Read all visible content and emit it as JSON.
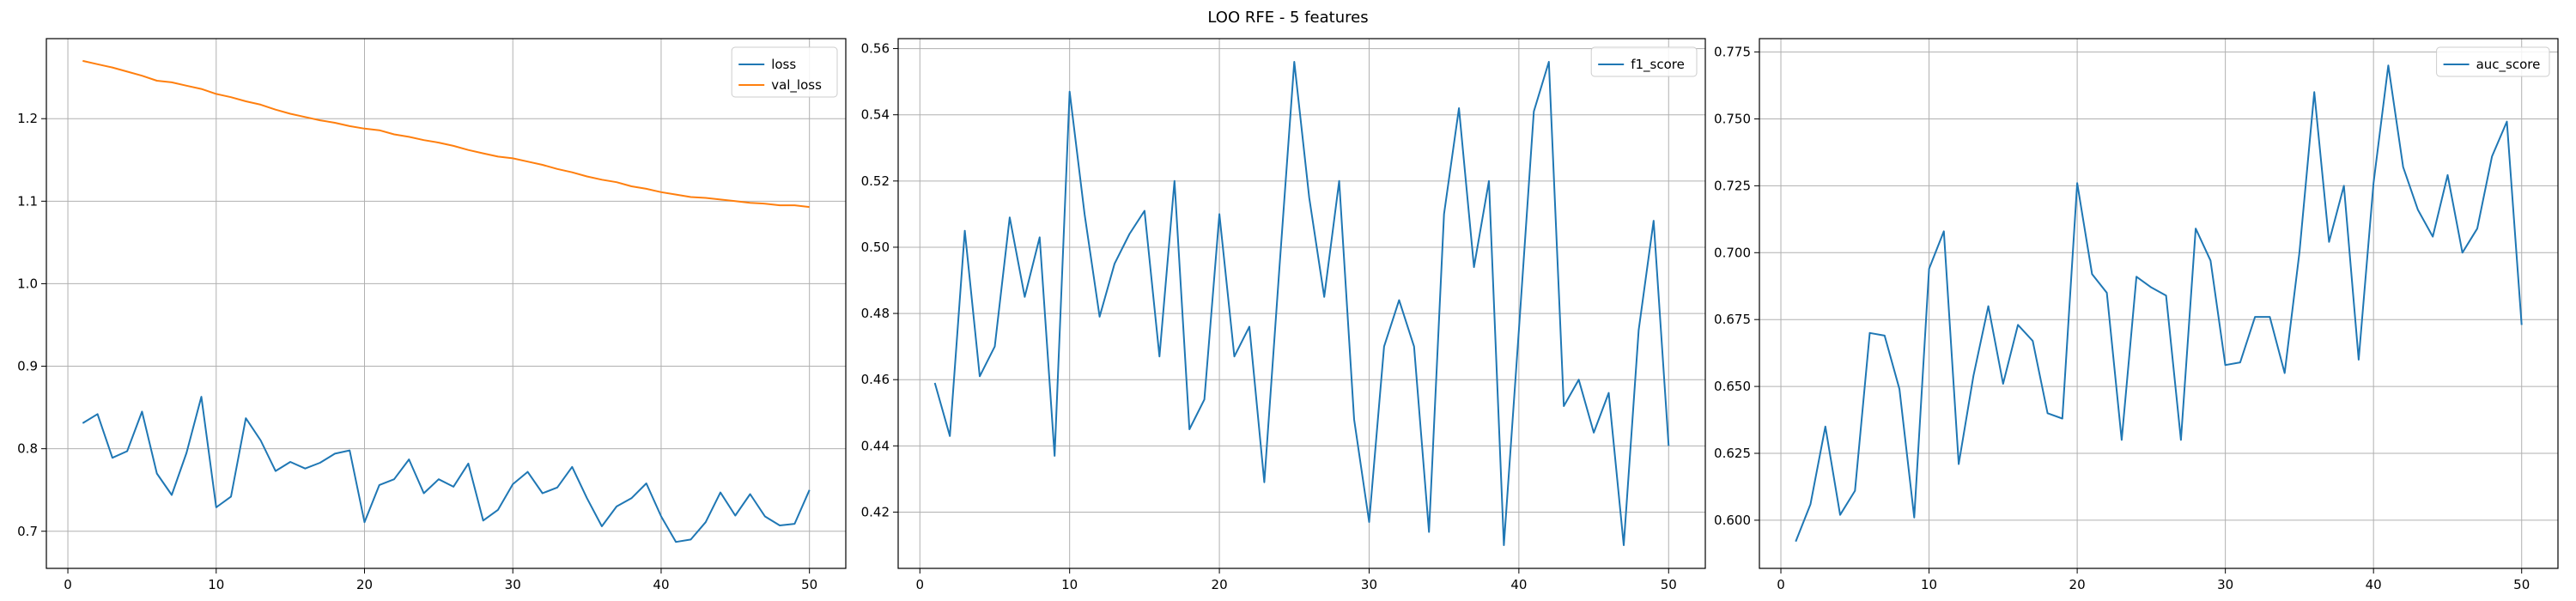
{
  "figure": {
    "title": "LOO RFE - 5 features"
  },
  "colors": {
    "blue": "#1f77b4",
    "orange": "#ff7f0e",
    "grid": "#b0b0b0"
  },
  "chart_data": [
    {
      "type": "line",
      "x": [
        1,
        2,
        3,
        4,
        5,
        6,
        7,
        8,
        9,
        10,
        11,
        12,
        13,
        14,
        15,
        16,
        17,
        18,
        19,
        20,
        21,
        22,
        23,
        24,
        25,
        26,
        27,
        28,
        29,
        30,
        31,
        32,
        33,
        34,
        35,
        36,
        37,
        38,
        39,
        40,
        41,
        42,
        43,
        44,
        45,
        46,
        47,
        48,
        49,
        50
      ],
      "series": [
        {
          "name": "loss",
          "color": "#1f77b4",
          "values": [
            0.831,
            0.842,
            0.789,
            0.797,
            0.845,
            0.77,
            0.744,
            0.795,
            0.863,
            0.729,
            0.742,
            0.837,
            0.81,
            0.773,
            0.784,
            0.776,
            0.783,
            0.794,
            0.798,
            0.711,
            0.756,
            0.763,
            0.787,
            0.746,
            0.763,
            0.754,
            0.782,
            0.713,
            0.726,
            0.757,
            0.772,
            0.746,
            0.753,
            0.778,
            0.74,
            0.706,
            0.73,
            0.74,
            0.758,
            0.718,
            0.687,
            0.69,
            0.711,
            0.747,
            0.719,
            0.745,
            0.718,
            0.707,
            0.709,
            0.75
          ]
        },
        {
          "name": "val_loss",
          "color": "#ff7f0e",
          "values": [
            1.27,
            1.266,
            1.262,
            1.257,
            1.252,
            1.246,
            1.244,
            1.24,
            1.236,
            1.23,
            1.226,
            1.221,
            1.217,
            1.211,
            1.206,
            1.202,
            1.198,
            1.195,
            1.191,
            1.188,
            1.186,
            1.181,
            1.178,
            1.174,
            1.171,
            1.167,
            1.162,
            1.158,
            1.154,
            1.152,
            1.148,
            1.144,
            1.139,
            1.135,
            1.13,
            1.126,
            1.123,
            1.118,
            1.115,
            1.111,
            1.108,
            1.105,
            1.104,
            1.102,
            1.1,
            1.098,
            1.097,
            1.095,
            1.095,
            1.093
          ]
        }
      ],
      "ylim": [
        0.655,
        1.297
      ],
      "xlim": [
        -1.45,
        52.45
      ],
      "yticks": [
        0.7,
        0.8,
        0.9,
        1.0,
        1.1,
        1.2
      ],
      "xticks": [
        0,
        10,
        20,
        30,
        40,
        50
      ],
      "grid": true,
      "legend": "top-right"
    },
    {
      "type": "line",
      "x": [
        1,
        2,
        3,
        4,
        5,
        6,
        7,
        8,
        9,
        10,
        11,
        12,
        13,
        14,
        15,
        16,
        17,
        18,
        19,
        20,
        21,
        22,
        23,
        24,
        25,
        26,
        27,
        28,
        29,
        30,
        31,
        32,
        33,
        34,
        35,
        36,
        37,
        38,
        39,
        40,
        41,
        42,
        43,
        44,
        45,
        46,
        47,
        48,
        49,
        50
      ],
      "series": [
        {
          "name": "f1_score",
          "color": "#1f77b4",
          "values": [
            0.459,
            0.443,
            0.505,
            0.461,
            0.47,
            0.509,
            0.485,
            0.503,
            0.437,
            0.547,
            0.51,
            0.479,
            0.495,
            0.504,
            0.511,
            0.467,
            0.52,
            0.445,
            0.454,
            0.51,
            0.467,
            0.476,
            0.429,
            0.493,
            0.556,
            0.515,
            0.485,
            0.52,
            0.448,
            0.417,
            0.47,
            0.484,
            0.47,
            0.414,
            0.51,
            0.542,
            0.494,
            0.52,
            0.41,
            0.475,
            0.541,
            0.556,
            0.452,
            0.46,
            0.444,
            0.456,
            0.41,
            0.475,
            0.508,
            0.44
          ]
        }
      ],
      "ylim": [
        0.403,
        0.563
      ],
      "xlim": [
        -1.45,
        52.45
      ],
      "yticks": [
        0.42,
        0.44,
        0.46,
        0.48,
        0.5,
        0.52,
        0.54,
        0.56
      ],
      "xticks": [
        0,
        10,
        20,
        30,
        40,
        50
      ],
      "grid": true,
      "legend": "top-right"
    },
    {
      "type": "line",
      "x": [
        1,
        2,
        3,
        4,
        5,
        6,
        7,
        8,
        9,
        10,
        11,
        12,
        13,
        14,
        15,
        16,
        17,
        18,
        19,
        20,
        21,
        22,
        23,
        24,
        25,
        26,
        27,
        28,
        29,
        30,
        31,
        32,
        33,
        34,
        35,
        36,
        37,
        38,
        39,
        40,
        41,
        42,
        43,
        44,
        45,
        46,
        47,
        48,
        49,
        50
      ],
      "series": [
        {
          "name": "auc_score",
          "color": "#1f77b4",
          "values": [
            0.592,
            0.606,
            0.635,
            0.602,
            0.611,
            0.67,
            0.669,
            0.649,
            0.601,
            0.694,
            0.708,
            0.621,
            0.654,
            0.68,
            0.651,
            0.673,
            0.667,
            0.64,
            0.638,
            0.726,
            0.692,
            0.685,
            0.63,
            0.691,
            0.687,
            0.684,
            0.63,
            0.709,
            0.697,
            0.658,
            0.659,
            0.676,
            0.676,
            0.655,
            0.7,
            0.76,
            0.704,
            0.725,
            0.66,
            0.726,
            0.77,
            0.732,
            0.716,
            0.706,
            0.729,
            0.7,
            0.709,
            0.736,
            0.749,
            0.673
          ]
        }
      ],
      "ylim": [
        0.582,
        0.78
      ],
      "xlim": [
        -1.45,
        52.45
      ],
      "yticks": [
        0.6,
        0.625,
        0.65,
        0.675,
        0.7,
        0.725,
        0.75,
        0.775
      ],
      "xticks": [
        0,
        10,
        20,
        30,
        40,
        50
      ],
      "grid": true,
      "legend": "top-right"
    }
  ]
}
